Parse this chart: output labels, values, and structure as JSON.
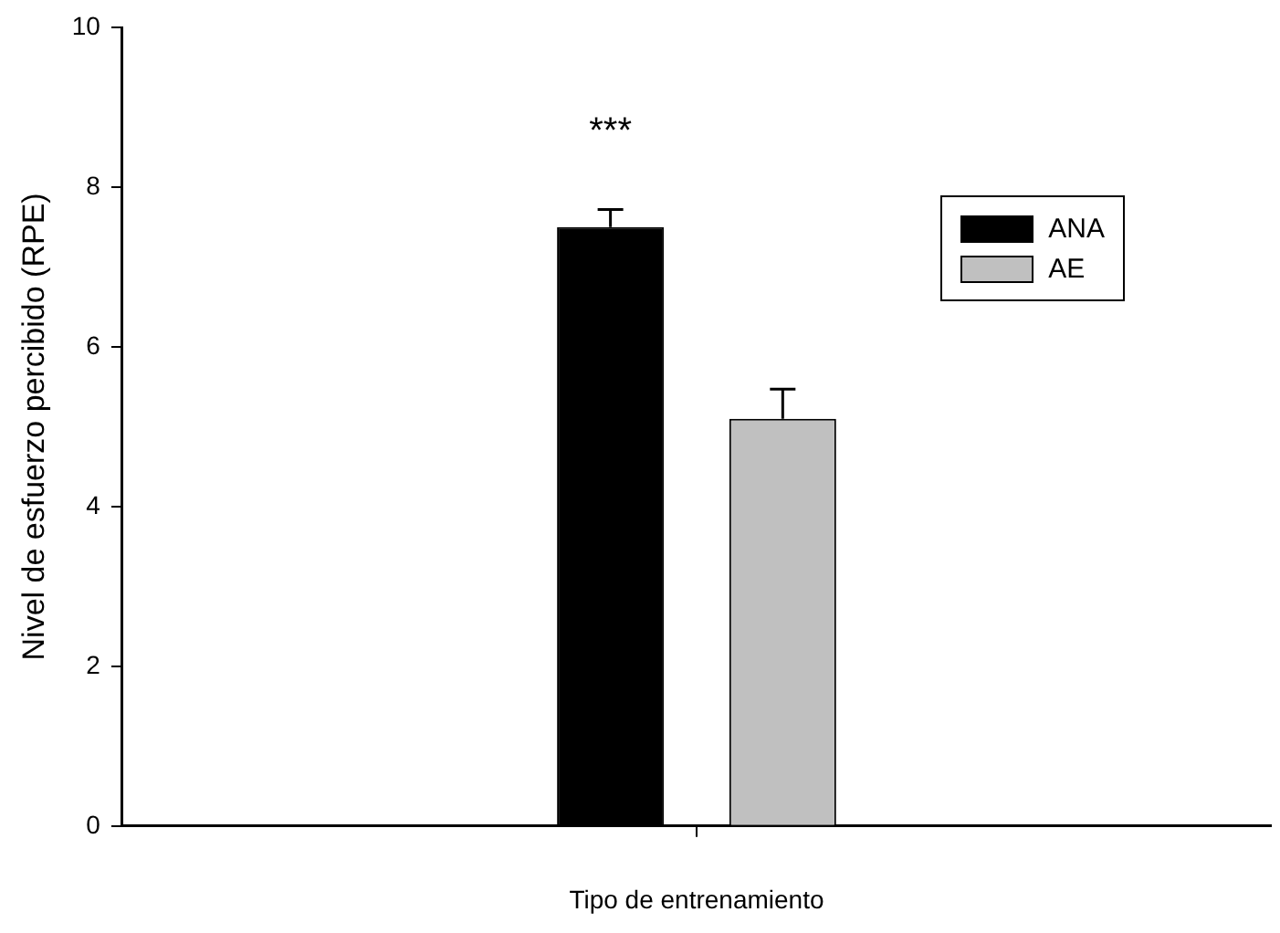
{
  "chart_data": {
    "type": "bar",
    "xlabel": "Tipo de entrenamiento",
    "ylabel": "Nivel de esfuerzo percibido (RPE)",
    "categories": [
      null
    ],
    "series": [
      {
        "name": "ANA",
        "color": "#000000",
        "values": [
          7.5
        ],
        "errors": [
          0.22
        ]
      },
      {
        "name": "AE",
        "color": "#c0c0c0",
        "values": [
          5.1
        ],
        "errors": [
          0.37
        ]
      }
    ],
    "ylim": [
      0,
      10
    ],
    "yticks": [
      0,
      2,
      4,
      6,
      8,
      10
    ],
    "grid": false,
    "legend": "top right",
    "annotations": [
      "***"
    ]
  }
}
